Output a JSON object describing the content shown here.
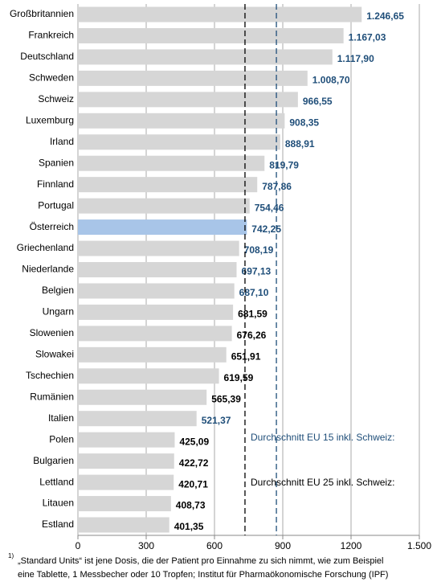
{
  "chart_data": {
    "type": "bar",
    "orientation": "horizontal",
    "categories": [
      "Großbritannien",
      "Frankreich",
      "Deutschland",
      "Schweden",
      "Schweiz",
      "Luxemburg",
      "Irland",
      "Spanien",
      "Finnland",
      "Portugal",
      "Österreich",
      "Griechenland",
      "Niederlande",
      "Belgien",
      "Ungarn",
      "Slowenien",
      "Slowakei",
      "Tschechien",
      "Rumänien",
      "Italien",
      "Polen",
      "Bulgarien",
      "Lettland",
      "Litauen",
      "Estland"
    ],
    "values": [
      1246.65,
      1167.03,
      1117.9,
      1008.7,
      966.55,
      908.35,
      888.91,
      819.79,
      787.86,
      754.46,
      742.25,
      708.19,
      697.13,
      687.1,
      681.59,
      676.26,
      651.91,
      619.59,
      565.39,
      521.37,
      425.09,
      422.72,
      420.71,
      408.73,
      401.35
    ],
    "value_labels": [
      "1.246,65",
      "1.167,03",
      "1.117,90",
      "1.008,70",
      "966,55",
      "908,35",
      "888,91",
      "819,79",
      "787,86",
      "754,46",
      "742,25",
      "708,19",
      "697,13",
      "687,10",
      "681,59",
      "676,26",
      "651,91",
      "619,59",
      "565,39",
      "521,37",
      "425,09",
      "422,72",
      "420,71",
      "408,73",
      "401,35"
    ],
    "colors": [
      "#d6d6d6",
      "#d6d6d6",
      "#d6d6d6",
      "#d6d6d6",
      "#d6d6d6",
      "#d6d6d6",
      "#d6d6d6",
      "#d6d6d6",
      "#d6d6d6",
      "#d6d6d6",
      "#a8c5e8",
      "#d6d6d6",
      "#d6d6d6",
      "#d6d6d6",
      "#d6d6d6",
      "#d6d6d6",
      "#d6d6d6",
      "#d6d6d6",
      "#d6d6d6",
      "#d6d6d6",
      "#d6d6d6",
      "#d6d6d6",
      "#d6d6d6",
      "#d6d6d6",
      "#d6d6d6"
    ],
    "label_colors": [
      "#1f4e79",
      "#1f4e79",
      "#1f4e79",
      "#1f4e79",
      "#1f4e79",
      "#1f4e79",
      "#1f4e79",
      "#1f4e79",
      "#1f4e79",
      "#1f4e79",
      "#1f4e79",
      "#1f4e79",
      "#1f4e79",
      "#1f4e79",
      "#000000",
      "#000000",
      "#000000",
      "#000000",
      "#000000",
      "#1f4e79",
      "#000000",
      "#000000",
      "#000000",
      "#000000",
      "#000000"
    ],
    "xlim": [
      0,
      1500
    ],
    "xticks": [
      0,
      300,
      600,
      900,
      1200,
      {
        "value": 1500,
        "label": "1.500"
      }
    ],
    "grid": true,
    "reference_lines": [
      {
        "label": "Durchschnitt EU 15 inkl. Schweiz:",
        "value": 872,
        "color": "#1f4e79"
      },
      {
        "label": "Durchschnitt EU 25 inkl. Schweiz:",
        "value": 734,
        "color": "#000000"
      }
    ],
    "footnote_marker": "1)",
    "footnote": [
      "„Standard Units“ ist jene Dosis, die der Patient pro Einnahme zu sich nimmt, wie zum Beispiel",
      "eine Tablette, 1 Messbecher oder 10 Tropfen; Institut für Pharmaökonomische Forschung (IPF)"
    ]
  }
}
